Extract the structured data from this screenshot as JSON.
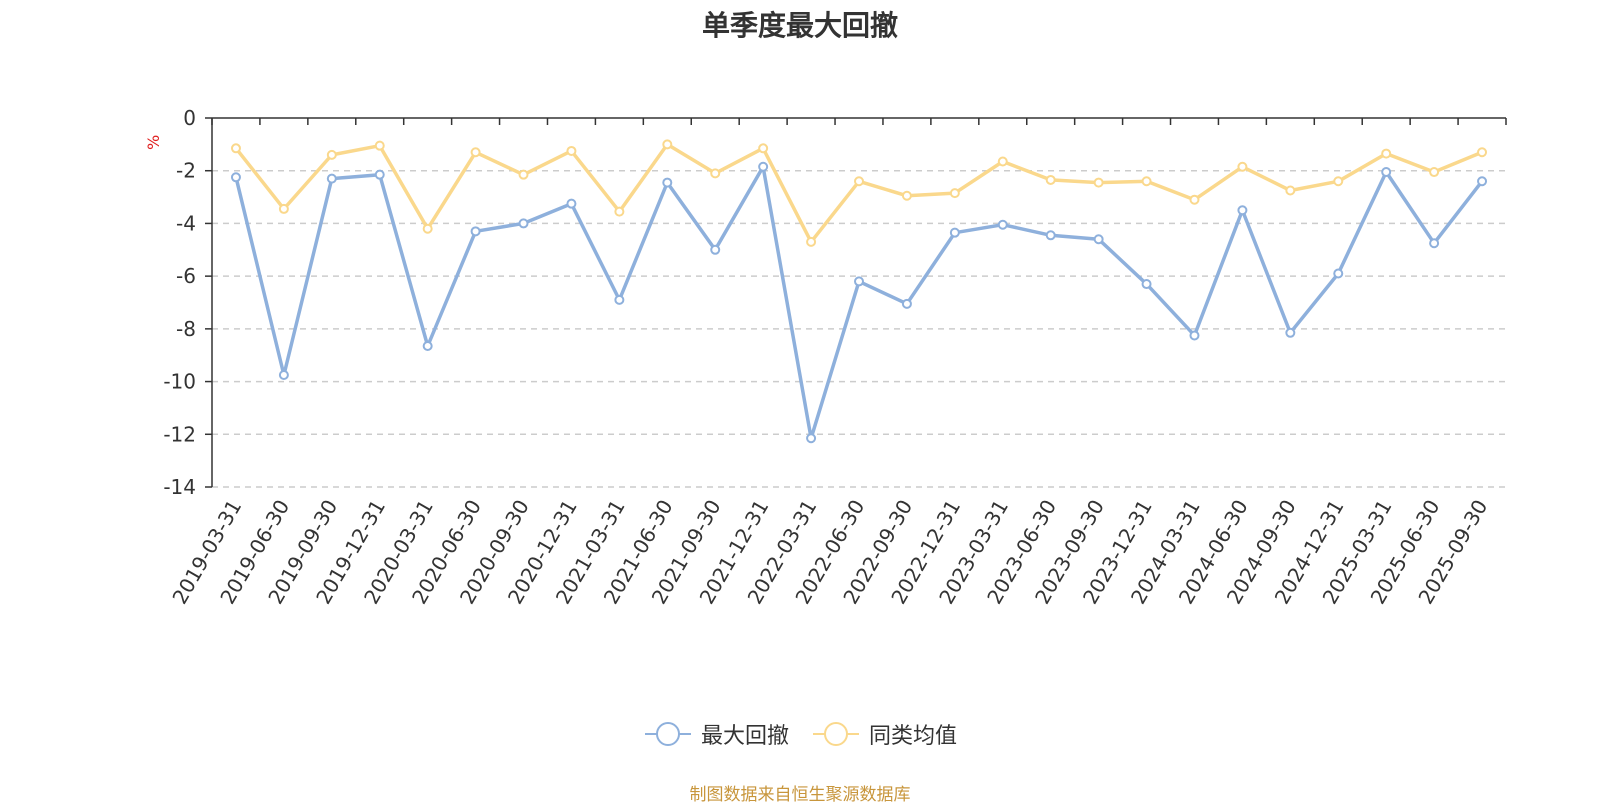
{
  "chart_data": {
    "type": "line",
    "title": "单季度最大回撤",
    "ylabel": "%",
    "ylim": [
      -14,
      0
    ],
    "yticks": [
      0,
      -2,
      -4,
      -6,
      -8,
      -10,
      -12,
      -14
    ],
    "grid": "horizontal-dashed",
    "legend_position": "bottom-center",
    "categories": [
      "2019-03-31",
      "2019-06-30",
      "2019-09-30",
      "2019-12-31",
      "2020-03-31",
      "2020-06-30",
      "2020-09-30",
      "2020-12-31",
      "2021-03-31",
      "2021-06-30",
      "2021-09-30",
      "2021-12-31",
      "2022-03-31",
      "2022-06-30",
      "2022-09-30",
      "2022-12-31",
      "2023-03-31",
      "2023-06-30",
      "2023-09-30",
      "2023-12-31",
      "2024-03-31",
      "2024-06-30",
      "2024-09-30",
      "2024-12-31",
      "2025-03-31",
      "2025-06-30",
      "2025-09-30"
    ],
    "series": [
      {
        "name": "最大回撤",
        "color": "#8eb0dc",
        "values": [
          -2.25,
          -9.75,
          -2.3,
          -2.15,
          -8.65,
          -4.3,
          -4.0,
          -3.25,
          -6.9,
          -2.45,
          -5.0,
          -1.85,
          -12.15,
          -6.2,
          -7.05,
          -4.35,
          -4.05,
          -4.45,
          -4.6,
          -6.3,
          -8.25,
          -3.5,
          -8.15,
          -5.9,
          -2.05,
          -4.75,
          -2.4
        ]
      },
      {
        "name": "同类均值",
        "color": "#fad88c",
        "values": [
          -1.15,
          -3.45,
          -1.4,
          -1.05,
          -4.2,
          -1.3,
          -2.15,
          -1.25,
          -3.55,
          -1.0,
          -2.1,
          -1.15,
          -4.7,
          -2.4,
          -2.95,
          -2.85,
          -1.65,
          -2.35,
          -2.45,
          -2.4,
          -3.1,
          -1.85,
          -2.75,
          -2.4,
          -1.35,
          -2.05,
          -1.3
        ]
      }
    ]
  },
  "source_note": "制图数据来自恒生聚源数据库"
}
